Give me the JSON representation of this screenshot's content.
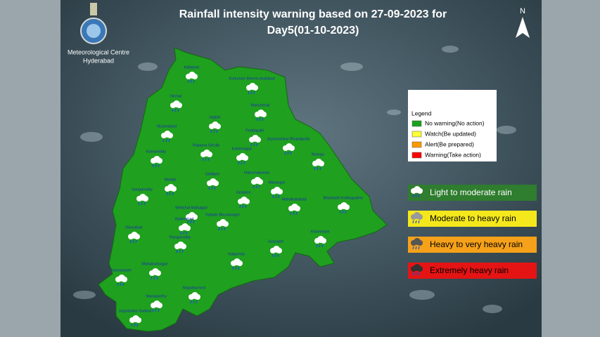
{
  "header": {
    "title_line1": "Rainfall intensity warning based on 27-09-2023 for",
    "title_line2": "Day5(01-10-2023)",
    "organization": "Meteorological Centre",
    "city": "Hyderabad",
    "north": "N"
  },
  "legend": {
    "title": "Legend",
    "items": [
      {
        "label": "No warning(No action)",
        "color": "#1aa31a"
      },
      {
        "label": "Watch(Be updated)",
        "color": "#ffff33"
      },
      {
        "label": "Alert(Be prepared)",
        "color": "#ff9900"
      },
      {
        "label": "Warning(Take action)",
        "color": "#ff0000"
      }
    ]
  },
  "rain_categories": [
    {
      "label": "Light to moderate rain",
      "color": "#2f7d2f"
    },
    {
      "label": "Moderate to heavy rain",
      "color": "#f4e81c"
    },
    {
      "label": "Heavy to very heavy rain",
      "color": "#f5a11a"
    },
    {
      "label": "Extremely heavy rain",
      "color": "#e51414"
    }
  ],
  "district_color": "#1fa01f",
  "districts": [
    "Adilabad",
    "Kumuram Bheem Asifabad",
    "Nirmal",
    "Mancherial",
    "Jagtial",
    "Nizamabad",
    "Peddapalli",
    "Jayashankar Bhupalpally",
    "Rajanna Sircilla",
    "Karimnagar",
    "Mulugu",
    "Kamareddy",
    "Hanumakonda",
    "Siddipet",
    "Medak",
    "Warangal",
    "Sangareddy",
    "Jangaon",
    "Bhadradri Kothagudem",
    "Mahabubabad",
    "Medchal Malkajgiri",
    "Yadadri Bhuvanagiri",
    "Hyderabad",
    "Vikarabad",
    "Khammam",
    "Rangareddy",
    "Suryapet",
    "Nalgonda",
    "Mahabubnagar",
    "Narayanpet",
    "Nagarkurnool",
    "Wanaparthy",
    "Jogulamba Gadwal"
  ]
}
